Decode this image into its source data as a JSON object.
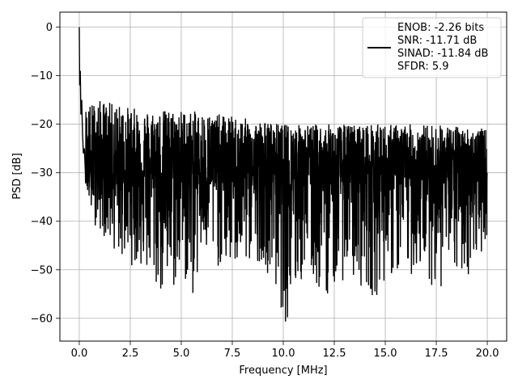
{
  "chart_data": {
    "type": "line",
    "title": "",
    "xlabel": "Frequency [MHz]",
    "ylabel": "PSD [dB]",
    "xlim": [
      -0.95,
      20.95
    ],
    "ylim": [
      -64.7,
      3.1
    ],
    "xticks": [
      0.0,
      2.5,
      5.0,
      7.5,
      10.0,
      12.5,
      15.0,
      17.5,
      20.0
    ],
    "xtick_labels": [
      "0.0",
      "2.5",
      "5.0",
      "7.5",
      "10.0",
      "12.5",
      "15.0",
      "17.5",
      "20.0"
    ],
    "yticks": [
      0,
      -10,
      -20,
      -30,
      -40,
      -50,
      -60
    ],
    "ytick_labels": [
      "0",
      "−10",
      "−20",
      "−30",
      "−40",
      "−50",
      "−60"
    ],
    "grid": true,
    "legend_position": "top-right",
    "line_color": "#000000",
    "series": [
      {
        "name": "ENOB: -2.26 bits\nSNR: -11.71 dB\nSINAD: -11.84 dB\nSFDR: 5.9",
        "legend_lines": [
          "ENOB: -2.26 bits",
          "SNR: -11.71 dB",
          "SINAD: -11.84 dB",
          "SFDR: 5.9"
        ],
        "x": [
          0.0,
          0.02,
          0.05,
          0.08,
          0.12,
          0.16,
          0.2,
          0.25,
          0.3,
          0.36,
          0.42,
          0.5,
          0.6,
          0.7,
          0.85,
          1.0,
          1.5,
          2.0,
          3.0,
          4.0,
          4.3,
          5.0,
          5.6,
          6.0,
          7.0,
          8.0,
          9.0,
          10.0,
          10.2,
          11.0,
          12.0,
          12.5,
          13.0,
          14.0,
          14.5,
          15.0,
          16.0,
          17.0,
          17.5,
          18.0,
          19.0,
          20.0
        ],
        "y": [
          0,
          -12,
          -9,
          -18,
          -15,
          -22,
          -26,
          -25,
          -30,
          -28,
          -32,
          -33,
          -30,
          -33,
          -31,
          -35,
          -30,
          -32,
          -31,
          -33,
          -42,
          -32,
          -40,
          -31,
          -32,
          -33,
          -31,
          -34,
          -50,
          -32,
          -33,
          -31,
          -34,
          -32,
          -35,
          -33,
          -33,
          -34,
          -32,
          -34,
          -33,
          -30
        ],
        "noise_profile": {
          "upper_envelope": [
            [
              0.3,
              -16
            ],
            [
              1.0,
              -15
            ],
            [
              2.0,
              -16
            ],
            [
              3.0,
              -17
            ],
            [
              5.0,
              -17
            ],
            [
              7.0,
              -18
            ],
            [
              10.0,
              -20
            ],
            [
              12.5,
              -20
            ],
            [
              15.0,
              -20
            ],
            [
              17.5,
              -20
            ],
            [
              20.0,
              -21
            ]
          ],
          "lower_envelope": [
            [
              0.3,
              -32
            ],
            [
              0.6,
              -40
            ],
            [
              1.0,
              -42
            ],
            [
              2.0,
              -48
            ],
            [
              3.0,
              -50
            ],
            [
              4.3,
              -58
            ],
            [
              5.0,
              -52
            ],
            [
              5.6,
              -56
            ],
            [
              6.0,
              -48
            ],
            [
              7.0,
              -50
            ],
            [
              8.0,
              -50
            ],
            [
              9.0,
              -48
            ],
            [
              10.2,
              -62
            ],
            [
              11.0,
              -52
            ],
            [
              12.0,
              -56
            ],
            [
              13.0,
              -52
            ],
            [
              14.0,
              -54
            ],
            [
              14.5,
              -56
            ],
            [
              15.0,
              -52
            ],
            [
              16.0,
              -52
            ],
            [
              17.0,
              -50
            ],
            [
              17.5,
              -56
            ],
            [
              18.0,
              -52
            ],
            [
              19.0,
              -52
            ],
            [
              20.0,
              -44
            ]
          ],
          "points": 2400
        }
      }
    ]
  }
}
